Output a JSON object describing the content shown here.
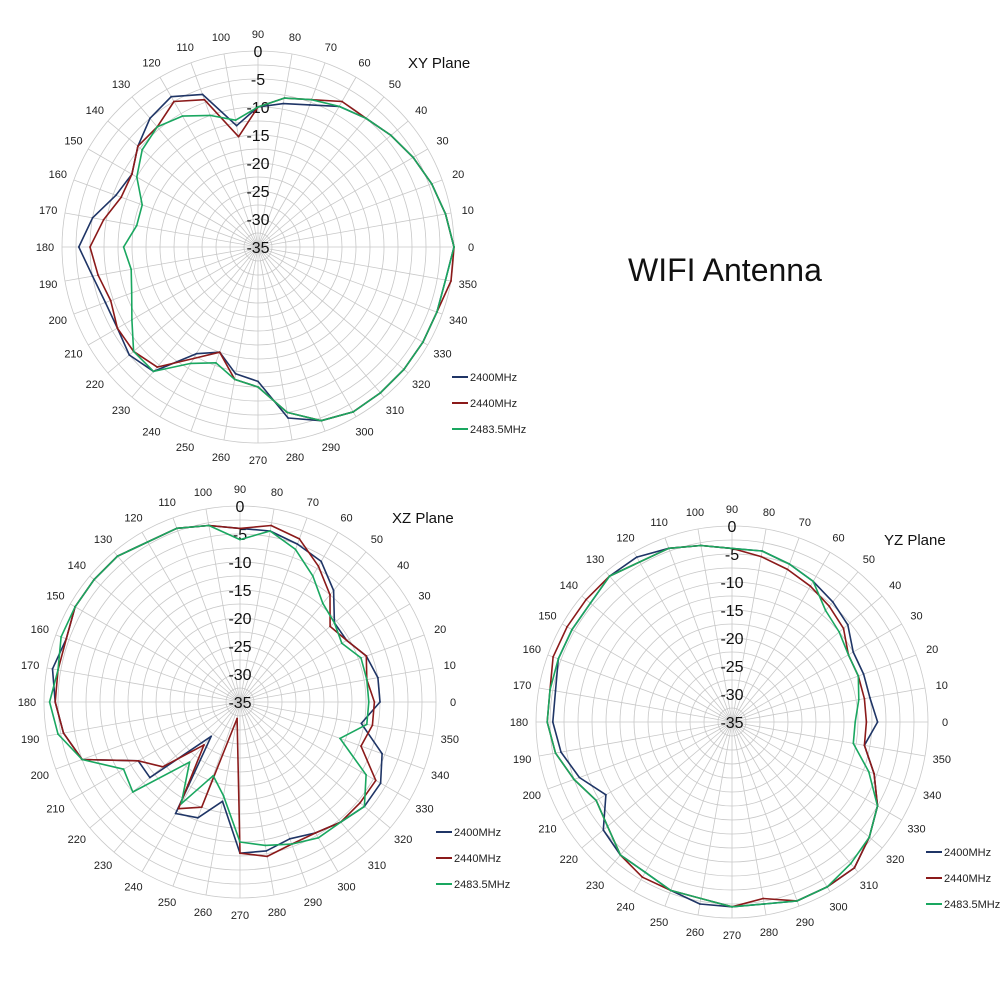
{
  "page": {
    "title": "WIFI Antenna"
  },
  "colors": {
    "grid": "#c8c8c8",
    "text": "#222222",
    "s2400": "#1f3566",
    "s2440": "#8b1a1a",
    "s2483": "#1aa760"
  },
  "chart_data": [
    {
      "type": "polar",
      "title": "XY Plane",
      "angle_unit": "deg",
      "angle_ticks": [
        0,
        10,
        20,
        30,
        40,
        50,
        60,
        70,
        80,
        90,
        100,
        110,
        120,
        130,
        140,
        150,
        160,
        170,
        180,
        190,
        200,
        210,
        220,
        230,
        240,
        250,
        260,
        270,
        280,
        290,
        300,
        310,
        320,
        330,
        340,
        350
      ],
      "radial_ticks": [
        0,
        -5,
        -10,
        -15,
        -20,
        -25,
        -30,
        -35
      ],
      "rlim": [
        -35,
        0
      ],
      "grid": true,
      "legend_position": "bottom-right",
      "angles": [
        0,
        10,
        20,
        30,
        40,
        50,
        60,
        70,
        80,
        90,
        100,
        110,
        120,
        130,
        140,
        150,
        160,
        170,
        180,
        190,
        200,
        210,
        220,
        230,
        240,
        250,
        260,
        270,
        280,
        290,
        300,
        310,
        320,
        330,
        340,
        350
      ],
      "series": [
        {
          "name": "2400MHz",
          "values": [
            0,
            -1,
            -2,
            -3,
            -4,
            -5,
            -6,
            -8,
            -9,
            -10,
            -13,
            -6,
            -4,
            -5,
            -7,
            -9,
            -8,
            -5,
            -3,
            -5,
            -6,
            -6,
            -5,
            -6,
            -13,
            -15,
            -12,
            -11,
            -4,
            -2,
            -1,
            -1,
            -1,
            -1,
            -1,
            -1
          ]
        },
        {
          "name": "2440MHz",
          "values": [
            0,
            -1,
            -2,
            -3,
            -4,
            -5,
            -5,
            -7,
            -8,
            -10,
            -15,
            -7,
            -5,
            -7,
            -7,
            -9,
            -9,
            -7,
            -5,
            -6,
            -7,
            -6,
            -6,
            -7,
            -12,
            -15,
            -11,
            -10,
            -5,
            -2,
            -1,
            -1,
            -1,
            -1,
            -1,
            0
          ]
        },
        {
          "name": "2483.5MHz",
          "values": [
            0,
            -1,
            -2,
            -3,
            -4,
            -5,
            -6,
            -7,
            -8,
            -10,
            -12,
            -10,
            -8,
            -7,
            -8,
            -10,
            -13,
            -13,
            -11,
            -12,
            -11,
            -9,
            -6,
            -6,
            -11,
            -13,
            -11,
            -10,
            -5,
            -2,
            -1,
            -1,
            -1,
            -1,
            -1,
            -1
          ]
        }
      ]
    },
    {
      "type": "polar",
      "title": "XZ Plane",
      "angle_unit": "deg",
      "angle_ticks": [
        0,
        10,
        20,
        30,
        40,
        50,
        60,
        70,
        80,
        90,
        100,
        110,
        120,
        130,
        140,
        150,
        160,
        170,
        180,
        190,
        200,
        210,
        220,
        230,
        240,
        250,
        260,
        270,
        280,
        290,
        300,
        310,
        320,
        330,
        340,
        350
      ],
      "radial_ticks": [
        0,
        -5,
        -10,
        -15,
        -20,
        -25,
        -30,
        -35
      ],
      "rlim": [
        -35,
        0
      ],
      "grid": true,
      "legend_position": "bottom-right",
      "angles": [
        0,
        10,
        20,
        30,
        40,
        50,
        60,
        70,
        80,
        90,
        100,
        110,
        120,
        130,
        140,
        150,
        160,
        170,
        180,
        190,
        200,
        210,
        220,
        230,
        240,
        250,
        260,
        270,
        280,
        290,
        300,
        310,
        320,
        330,
        340,
        350
      ],
      "series": [
        {
          "name": "2400MHz",
          "values": [
            -10,
            -10,
            -11,
            -13,
            -13,
            -9,
            -6,
            -5,
            -4,
            -4,
            -3,
            -2,
            -2,
            -1,
            -1,
            -1,
            -2,
            -1,
            -2,
            -3,
            -5,
            -14,
            -14,
            -27,
            -12,
            -13,
            -17,
            -8,
            -8,
            -9,
            -8,
            -7,
            -6,
            -6,
            -8,
            -13
          ]
        },
        {
          "name": "2440MHz",
          "values": [
            -11,
            -12,
            -11,
            -13,
            -14,
            -10,
            -7,
            -4,
            -3,
            -4,
            -3,
            -2,
            -2,
            -1,
            -1,
            -1,
            -2,
            -2,
            -2,
            -3,
            -5,
            -14,
            -17,
            -25,
            -13,
            -15,
            -32,
            -8,
            -7,
            -8,
            -8,
            -7,
            -7,
            -7,
            -12,
            -11
          ]
        },
        {
          "name": "2483.5MHz",
          "values": [
            -12,
            -12,
            -12,
            -14,
            -13,
            -12,
            -9,
            -6,
            -4,
            -6,
            -3,
            -2,
            -2,
            -1,
            -1,
            -1,
            -1,
            -2,
            -1,
            -2,
            -5,
            -11,
            -10,
            -21,
            -14,
            -21,
            -18,
            -10,
            -9,
            -8,
            -7,
            -7,
            -6,
            -9,
            -16,
            -12
          ]
        }
      ]
    },
    {
      "type": "polar",
      "title": "YZ Plane",
      "angle_unit": "deg",
      "angle_ticks": [
        0,
        10,
        20,
        30,
        40,
        50,
        60,
        70,
        80,
        90,
        100,
        110,
        120,
        130,
        140,
        150,
        160,
        170,
        180,
        190,
        200,
        210,
        220,
        230,
        240,
        250,
        260,
        270,
        280,
        290,
        300,
        310,
        320,
        330,
        340,
        350
      ],
      "radial_ticks": [
        0,
        -5,
        -10,
        -15,
        -20,
        -25,
        -30,
        -35
      ],
      "rlim": [
        -35,
        0
      ],
      "grid": true,
      "legend_position": "bottom-right",
      "angles": [
        0,
        10,
        20,
        30,
        40,
        50,
        60,
        70,
        80,
        90,
        100,
        110,
        120,
        130,
        140,
        150,
        160,
        170,
        180,
        190,
        200,
        210,
        220,
        230,
        240,
        250,
        260,
        270,
        280,
        290,
        300,
        310,
        320,
        330,
        340,
        350
      ],
      "series": [
        {
          "name": "2400MHz",
          "values": [
            -9,
            -10,
            -10,
            -10,
            -8,
            -7,
            -6,
            -5,
            -4,
            -4,
            -3,
            -2,
            -1,
            -1,
            -2,
            -2,
            -2,
            -3,
            -3,
            -4,
            -6,
            -9,
            -5,
            -4,
            -4,
            -3,
            -2,
            -2,
            -2,
            -1,
            -1,
            -1,
            -3,
            -5,
            -8,
            -11
          ]
        },
        {
          "name": "2440MHz",
          "values": [
            -11,
            -11,
            -11,
            -11,
            -9,
            -8,
            -7,
            -6,
            -5,
            -4,
            -3,
            -2,
            -2,
            -1,
            -1,
            -1,
            -1,
            -2,
            -2,
            -3,
            -5,
            -7,
            -6,
            -4,
            -3,
            -3,
            -3,
            -2,
            -3,
            -1,
            -1,
            -1,
            -3,
            -5,
            -8,
            -11
          ]
        },
        {
          "name": "2483.5MHz",
          "values": [
            -13,
            -12,
            -11,
            -11,
            -10,
            -9,
            -6,
            -5,
            -4,
            -4,
            -3,
            -2,
            -2,
            -1,
            -2,
            -2,
            -2,
            -2,
            -2,
            -3,
            -5,
            -7,
            -6,
            -4,
            -4,
            -3,
            -3,
            -2,
            -2,
            -1,
            -1,
            -2,
            -3,
            -5,
            -9,
            -13
          ]
        }
      ]
    }
  ]
}
